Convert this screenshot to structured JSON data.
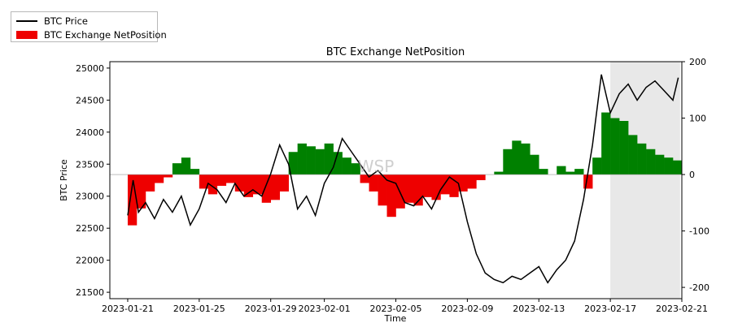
{
  "legend": {
    "price_label": "BTC Price",
    "netposition_label": "BTC Exchange NetPosition"
  },
  "watermark": "WSP",
  "chart_data": {
    "type": "line",
    "title": "BTC Exchange NetPosition",
    "xlabel": "Time",
    "ylabel": "BTC Price",
    "y2label": "",
    "xlim": [
      "2023-01-20",
      "2023-02-21"
    ],
    "ylim": [
      21400,
      25100
    ],
    "y2lim": [
      -220,
      200
    ],
    "x_ticks": [
      "2023-01-21",
      "2023-01-25",
      "2023-01-29",
      "2023-02-01",
      "2023-02-05",
      "2023-02-09",
      "2023-02-13",
      "2023-02-17",
      "2023-02-21"
    ],
    "y_ticks": [
      21500,
      22000,
      22500,
      23000,
      23500,
      24000,
      24500,
      25000
    ],
    "y2_ticks": [
      -200,
      -100,
      0,
      100,
      200
    ],
    "grid": false,
    "legend_position": "above-left",
    "shaded_region": {
      "from": "2023-02-17",
      "to": "2023-02-20.9"
    },
    "colors": {
      "price": "#000000",
      "positive": "#008000",
      "negative": "#ee0000",
      "shade": "#e8e8e8"
    },
    "series": [
      {
        "name": "BTC Price",
        "axis": "left",
        "x": [
          "2023-01-21",
          "2023-01-21.3",
          "2023-01-21.6",
          "2023-01-22",
          "2023-01-22.5",
          "2023-01-23",
          "2023-01-23.5",
          "2023-01-24",
          "2023-01-24.5",
          "2023-01-25",
          "2023-01-25.5",
          "2023-01-26",
          "2023-01-26.5",
          "2023-01-27",
          "2023-01-27.5",
          "2023-01-28",
          "2023-01-28.5",
          "2023-01-29",
          "2023-01-29.5",
          "2023-01-30",
          "2023-01-30.5",
          "2023-01-31",
          "2023-01-31.5",
          "2023-02-01",
          "2023-02-01.5",
          "2023-02-02",
          "2023-02-02.5",
          "2023-02-03",
          "2023-02-03.5",
          "2023-02-04",
          "2023-02-04.5",
          "2023-02-05",
          "2023-02-05.5",
          "2023-02-06",
          "2023-02-06.5",
          "2023-02-07",
          "2023-02-07.5",
          "2023-02-08",
          "2023-02-08.5",
          "2023-02-09",
          "2023-02-09.5",
          "2023-02-10",
          "2023-02-10.5",
          "2023-02-11",
          "2023-02-11.5",
          "2023-02-12",
          "2023-02-12.5",
          "2023-02-13",
          "2023-02-13.5",
          "2023-02-14",
          "2023-02-14.5",
          "2023-02-15",
          "2023-02-15.5",
          "2023-02-16",
          "2023-02-16.5",
          "2023-02-17",
          "2023-02-17.5",
          "2023-02-18",
          "2023-02-18.5",
          "2023-02-19",
          "2023-02-19.5",
          "2023-02-20",
          "2023-02-20.5",
          "2023-02-20.8"
        ],
        "values": [
          22700,
          23250,
          22750,
          22900,
          22650,
          22950,
          22750,
          23000,
          22550,
          22800,
          23200,
          23100,
          22900,
          23200,
          23000,
          23100,
          23000,
          23350,
          23800,
          23500,
          22800,
          23000,
          22700,
          23200,
          23450,
          23900,
          23700,
          23500,
          23300,
          23400,
          23250,
          23200,
          22900,
          22850,
          23000,
          22800,
          23100,
          23300,
          23200,
          22600,
          22100,
          21800,
          21700,
          21650,
          21750,
          21700,
          21800,
          21900,
          21650,
          21850,
          22000,
          22300,
          22950,
          23800,
          24900,
          24300,
          24600,
          24750,
          24500,
          24700,
          24800,
          24650,
          24500,
          24850
        ]
      },
      {
        "name": "BTC Exchange NetPosition",
        "axis": "right",
        "kind": "area",
        "x": [
          "2023-01-21",
          "2023-01-21.5",
          "2023-01-22",
          "2023-01-22.5",
          "2023-01-23",
          "2023-01-23.5",
          "2023-01-24",
          "2023-01-24.5",
          "2023-01-25",
          "2023-01-25.5",
          "2023-01-26",
          "2023-01-26.5",
          "2023-01-27",
          "2023-01-27.5",
          "2023-01-28",
          "2023-01-28.5",
          "2023-01-29",
          "2023-01-29.5",
          "2023-01-30",
          "2023-01-30.5",
          "2023-01-31",
          "2023-01-31.5",
          "2023-02-01",
          "2023-02-01.5",
          "2023-02-02",
          "2023-02-02.5",
          "2023-02-03",
          "2023-02-03.5",
          "2023-02-04",
          "2023-02-04.5",
          "2023-02-05",
          "2023-02-05.5",
          "2023-02-06",
          "2023-02-06.5",
          "2023-02-07",
          "2023-02-07.5",
          "2023-02-08",
          "2023-02-08.5",
          "2023-02-09",
          "2023-02-09.5",
          "2023-02-10",
          "2023-02-10.5",
          "2023-02-11",
          "2023-02-11.5",
          "2023-02-12",
          "2023-02-12.5",
          "2023-02-13",
          "2023-02-13.5",
          "2023-02-14",
          "2023-02-14.5",
          "2023-02-15",
          "2023-02-15.5",
          "2023-02-16",
          "2023-02-16.5",
          "2023-02-17",
          "2023-02-17.5",
          "2023-02-18",
          "2023-02-18.5",
          "2023-02-19",
          "2023-02-19.5",
          "2023-02-20",
          "2023-02-20.5"
        ],
        "values": [
          -90,
          -60,
          -30,
          -15,
          -5,
          20,
          30,
          10,
          -25,
          -35,
          -20,
          -15,
          -30,
          -40,
          -35,
          -50,
          -45,
          -30,
          40,
          55,
          50,
          45,
          55,
          40,
          30,
          20,
          -15,
          -30,
          -55,
          -75,
          -60,
          -50,
          -55,
          -40,
          -45,
          -35,
          -40,
          -30,
          -25,
          -10,
          0,
          5,
          45,
          60,
          55,
          35,
          10,
          0,
          15,
          5,
          10,
          -25,
          30,
          110,
          100,
          95,
          70,
          55,
          45,
          35,
          30,
          25
        ]
      }
    ]
  }
}
